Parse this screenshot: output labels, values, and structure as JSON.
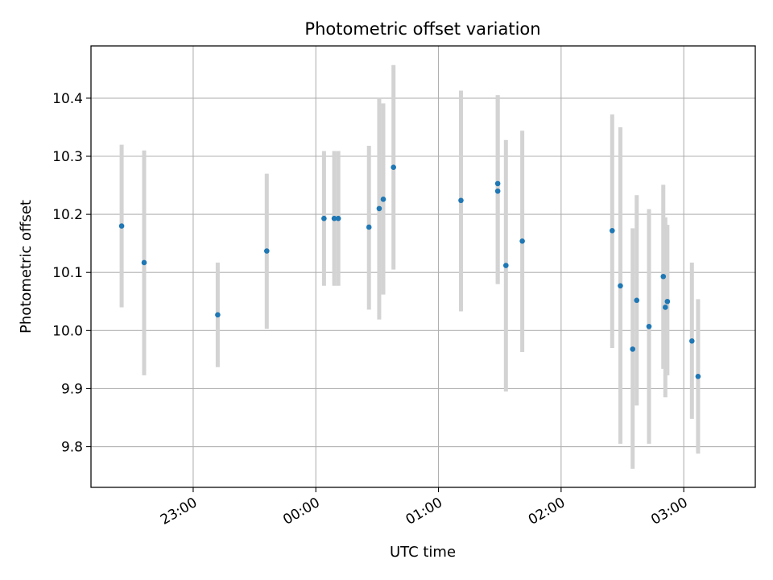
{
  "chart_data": {
    "type": "scatter",
    "title": "Photometric offset variation",
    "xlabel": "UTC time",
    "ylabel": "Photometric offset",
    "x_unit": "UTC time (HH:MM, night crossing midnight)",
    "xlim": [
      "22:10",
      "03:35"
    ],
    "ylim": [
      9.73,
      10.49
    ],
    "grid": true,
    "x_ticks": [
      "23:00",
      "00:00",
      "01:00",
      "02:00",
      "03:00"
    ],
    "y_ticks": [
      "9.8",
      "9.9",
      "10.0",
      "10.1",
      "10.2",
      "10.3",
      "10.4"
    ],
    "colors": {
      "point": "#1f77b4",
      "errorbar": "#d3d3d3",
      "grid": "#b0b0b0"
    },
    "series": [
      {
        "points": [
          {
            "x": "22:25",
            "y": 10.18,
            "ylow": 10.04,
            "yhigh": 10.32
          },
          {
            "x": "22:36",
            "y": 10.117,
            "ylow": 9.923,
            "yhigh": 10.31
          },
          {
            "x": "23:12",
            "y": 10.027,
            "ylow": 9.937,
            "yhigh": 10.117
          },
          {
            "x": "23:36",
            "y": 10.137,
            "ylow": 10.003,
            "yhigh": 10.27
          },
          {
            "x": "00:04",
            "y": 10.193,
            "ylow": 10.077,
            "yhigh": 10.309
          },
          {
            "x": "00:09",
            "y": 10.193,
            "ylow": 10.077,
            "yhigh": 10.309
          },
          {
            "x": "00:11",
            "y": 10.193,
            "ylow": 10.077,
            "yhigh": 10.309
          },
          {
            "x": "00:26",
            "y": 10.178,
            "ylow": 10.036,
            "yhigh": 10.318
          },
          {
            "x": "00:31",
            "y": 10.21,
            "ylow": 10.019,
            "yhigh": 10.4
          },
          {
            "x": "00:33",
            "y": 10.226,
            "ylow": 10.062,
            "yhigh": 10.391
          },
          {
            "x": "00:38",
            "y": 10.281,
            "ylow": 10.105,
            "yhigh": 10.457
          },
          {
            "x": "01:11",
            "y": 10.224,
            "ylow": 10.033,
            "yhigh": 10.413
          },
          {
            "x": "01:29",
            "y": 10.253,
            "ylow": 10.08,
            "yhigh": 10.405
          },
          {
            "x": "01:29",
            "y": 10.24,
            "ylow": 10.08,
            "yhigh": 10.405
          },
          {
            "x": "01:33",
            "y": 10.112,
            "ylow": 9.895,
            "yhigh": 10.328
          },
          {
            "x": "01:41",
            "y": 10.154,
            "ylow": 9.963,
            "yhigh": 10.344
          },
          {
            "x": "02:25",
            "y": 10.172,
            "ylow": 9.97,
            "yhigh": 10.372
          },
          {
            "x": "02:29",
            "y": 10.077,
            "ylow": 9.805,
            "yhigh": 10.35
          },
          {
            "x": "02:35",
            "y": 9.968,
            "ylow": 9.762,
            "yhigh": 10.176
          },
          {
            "x": "02:37",
            "y": 10.052,
            "ylow": 9.871,
            "yhigh": 10.233
          },
          {
            "x": "02:43",
            "y": 10.007,
            "ylow": 9.805,
            "yhigh": 10.209
          },
          {
            "x": "02:50",
            "y": 10.093,
            "ylow": 9.934,
            "yhigh": 10.251
          },
          {
            "x": "02:51",
            "y": 10.04,
            "ylow": 9.885,
            "yhigh": 10.195
          },
          {
            "x": "02:52",
            "y": 10.05,
            "ylow": 9.923,
            "yhigh": 10.182
          },
          {
            "x": "03:04",
            "y": 9.982,
            "ylow": 9.848,
            "yhigh": 10.117
          },
          {
            "x": "03:07",
            "y": 9.921,
            "ylow": 9.788,
            "yhigh": 10.054
          }
        ]
      }
    ]
  }
}
